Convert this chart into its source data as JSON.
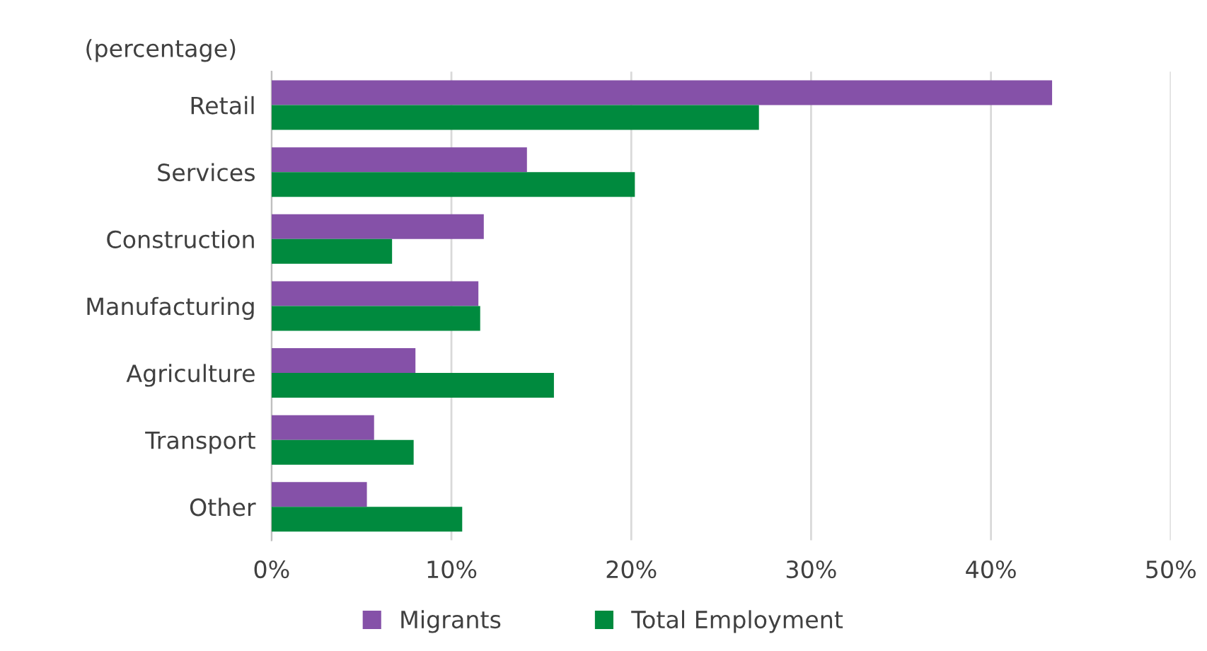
{
  "chart_data": {
    "type": "bar",
    "orientation": "horizontal",
    "ylabel": "(percentage)",
    "categories": [
      "Retail",
      "Services",
      "Construction",
      "Manufacturing",
      "Agriculture",
      "Transport",
      "Other"
    ],
    "series": [
      {
        "name": "Migrants",
        "color": "#8551a8",
        "values": [
          43.4,
          14.2,
          11.8,
          11.5,
          8.0,
          5.7,
          5.3
        ]
      },
      {
        "name": "Total Employment",
        "color": "#008a3e",
        "values": [
          27.1,
          20.2,
          6.7,
          11.6,
          15.7,
          7.9,
          10.6
        ]
      }
    ],
    "xlim": [
      0,
      50
    ],
    "xticks": [
      {
        "value": 0,
        "label": "0%"
      },
      {
        "value": 10,
        "label": "10%"
      },
      {
        "value": 20,
        "label": "20%"
      },
      {
        "value": 30,
        "label": "30%"
      },
      {
        "value": 40,
        "label": "40%"
      },
      {
        "value": 50,
        "label": "50%"
      }
    ],
    "grid": "x",
    "legend": "bottom"
  }
}
